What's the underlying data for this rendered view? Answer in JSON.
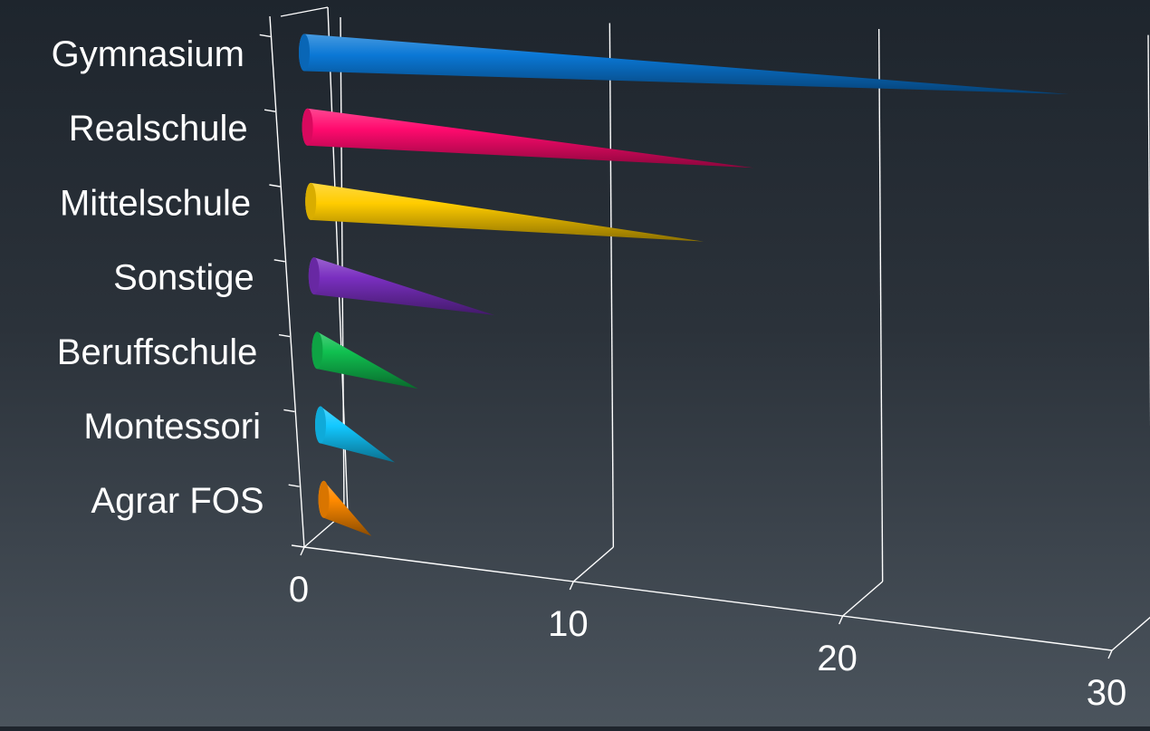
{
  "chart_data": {
    "type": "bar",
    "bar_shape": "cone",
    "orientation": "horizontal",
    "categories": [
      "Gymnasium",
      "Realschule",
      "Mittelschule",
      "Sonstige",
      "Beruffschule",
      "Montessori",
      "Agrar FOS"
    ],
    "values": [
      29,
      17,
      15,
      7,
      4,
      3,
      2
    ],
    "colors": [
      "#0a78d6",
      "#ff0a6e",
      "#ffcc00",
      "#7a2fc0",
      "#10c050",
      "#12c8ff",
      "#ff8a00"
    ],
    "x_ticks": [
      "0",
      "10",
      "20",
      "30"
    ],
    "xlim": [
      0,
      30
    ],
    "grid": true,
    "title": "",
    "xlabel": "",
    "ylabel": ""
  }
}
